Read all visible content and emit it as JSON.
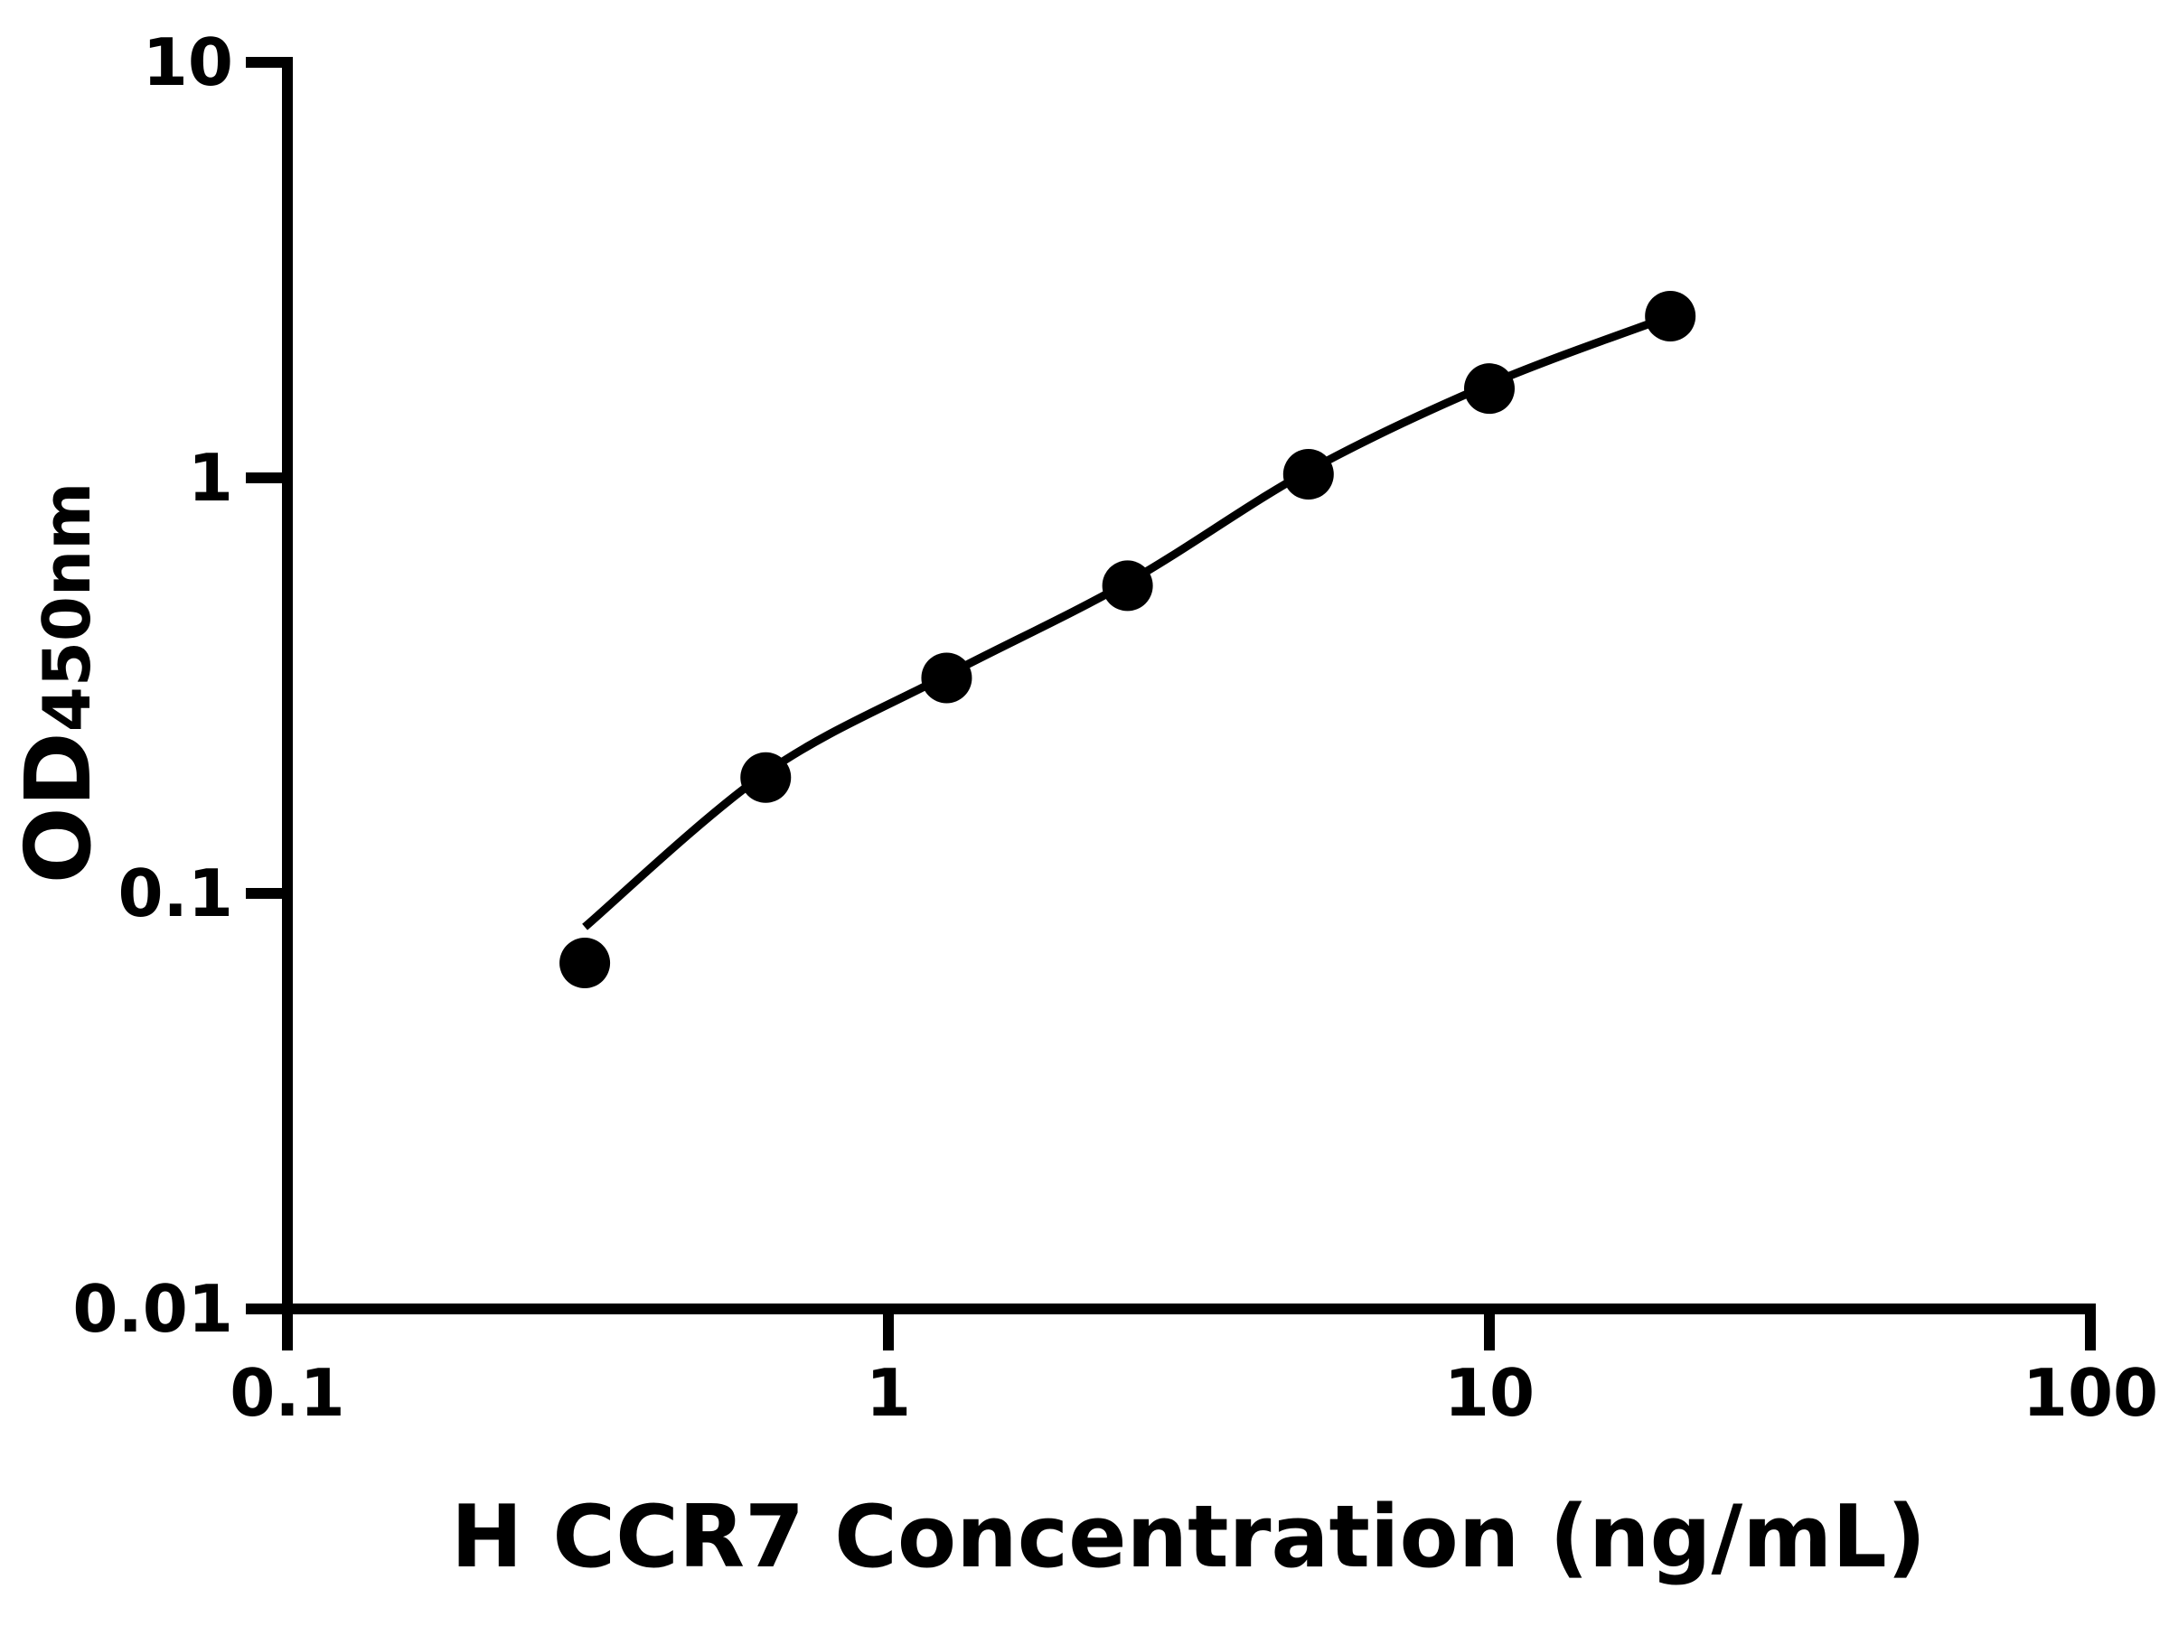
{
  "figure": {
    "background_color": "#ffffff",
    "ink_color": "#000000"
  },
  "chart_data": {
    "type": "scatter",
    "title": "",
    "xlabel": "H CCR7 Concentration (ng/mL)",
    "ylabel": "OD450nm",
    "ylabel_main": "OD",
    "ylabel_sub": "450nm",
    "x_scale": "log",
    "y_scale": "log",
    "xlim": [
      0.1,
      100
    ],
    "ylim": [
      0.01,
      10
    ],
    "x_ticks": [
      0.1,
      1,
      10,
      100
    ],
    "x_tick_labels": [
      "0.1",
      "1",
      "10",
      "100"
    ],
    "y_ticks": [
      10,
      1,
      0.1,
      0.01
    ],
    "y_tick_labels": [
      "10",
      "1",
      "0.1",
      "0.01"
    ],
    "grid": false,
    "legend": "none",
    "series": [
      {
        "name": "standard-points",
        "type": "scatter",
        "marker": "filled-circle",
        "color": "#000000",
        "points": [
          {
            "x": 0.3125,
            "y": 0.068
          },
          {
            "x": 0.625,
            "y": 0.19
          },
          {
            "x": 1.25,
            "y": 0.33
          },
          {
            "x": 2.5,
            "y": 0.55
          },
          {
            "x": 5,
            "y": 1.02
          },
          {
            "x": 10,
            "y": 1.64
          },
          {
            "x": 20,
            "y": 2.45
          }
        ]
      },
      {
        "name": "fit-curve",
        "type": "line",
        "color": "#000000",
        "points": [
          {
            "x": 0.3125,
            "y": 0.083
          },
          {
            "x": 0.625,
            "y": 0.195
          },
          {
            "x": 1.25,
            "y": 0.335
          },
          {
            "x": 2.5,
            "y": 0.56
          },
          {
            "x": 5,
            "y": 1.04
          },
          {
            "x": 10,
            "y": 1.68
          },
          {
            "x": 20,
            "y": 2.45
          }
        ]
      }
    ]
  }
}
